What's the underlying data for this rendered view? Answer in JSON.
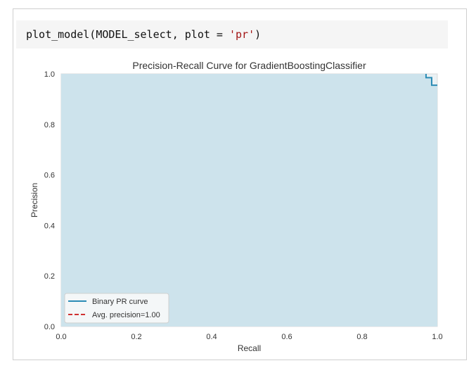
{
  "code_cell": {
    "prefix": "plot_model(MODEL_select, plot = ",
    "string_arg": "'pr'",
    "suffix": ")"
  },
  "colors": {
    "fill": "#cde3ec",
    "curve": "#2c8cb5",
    "avg_line": "#cf3131",
    "axes_text": "#333333"
  },
  "chart_data": {
    "type": "line",
    "title": "Precision-Recall Curve for GradientBoostingClassifier",
    "xlabel": "Recall",
    "ylabel": "Precision",
    "xlim": [
      0.0,
      1.0
    ],
    "ylim": [
      0.0,
      1.0
    ],
    "xticks": [
      "0.0",
      "0.2",
      "0.4",
      "0.6",
      "0.8",
      "1.0"
    ],
    "yticks": [
      "0.0",
      "0.2",
      "0.4",
      "0.6",
      "0.8",
      "1.0"
    ],
    "grid": false,
    "legend_position": "lower-left",
    "legend": [
      "Binary PR curve",
      "Avg. precision=1.00"
    ],
    "series": [
      {
        "name": "Binary PR curve",
        "x": [
          0.0,
          0.97,
          0.97,
          0.985,
          0.985,
          1.0,
          1.0
        ],
        "y": [
          1.0,
          1.0,
          0.985,
          0.985,
          0.955,
          0.955,
          1.0
        ]
      }
    ],
    "avg_precision": 1.0
  }
}
